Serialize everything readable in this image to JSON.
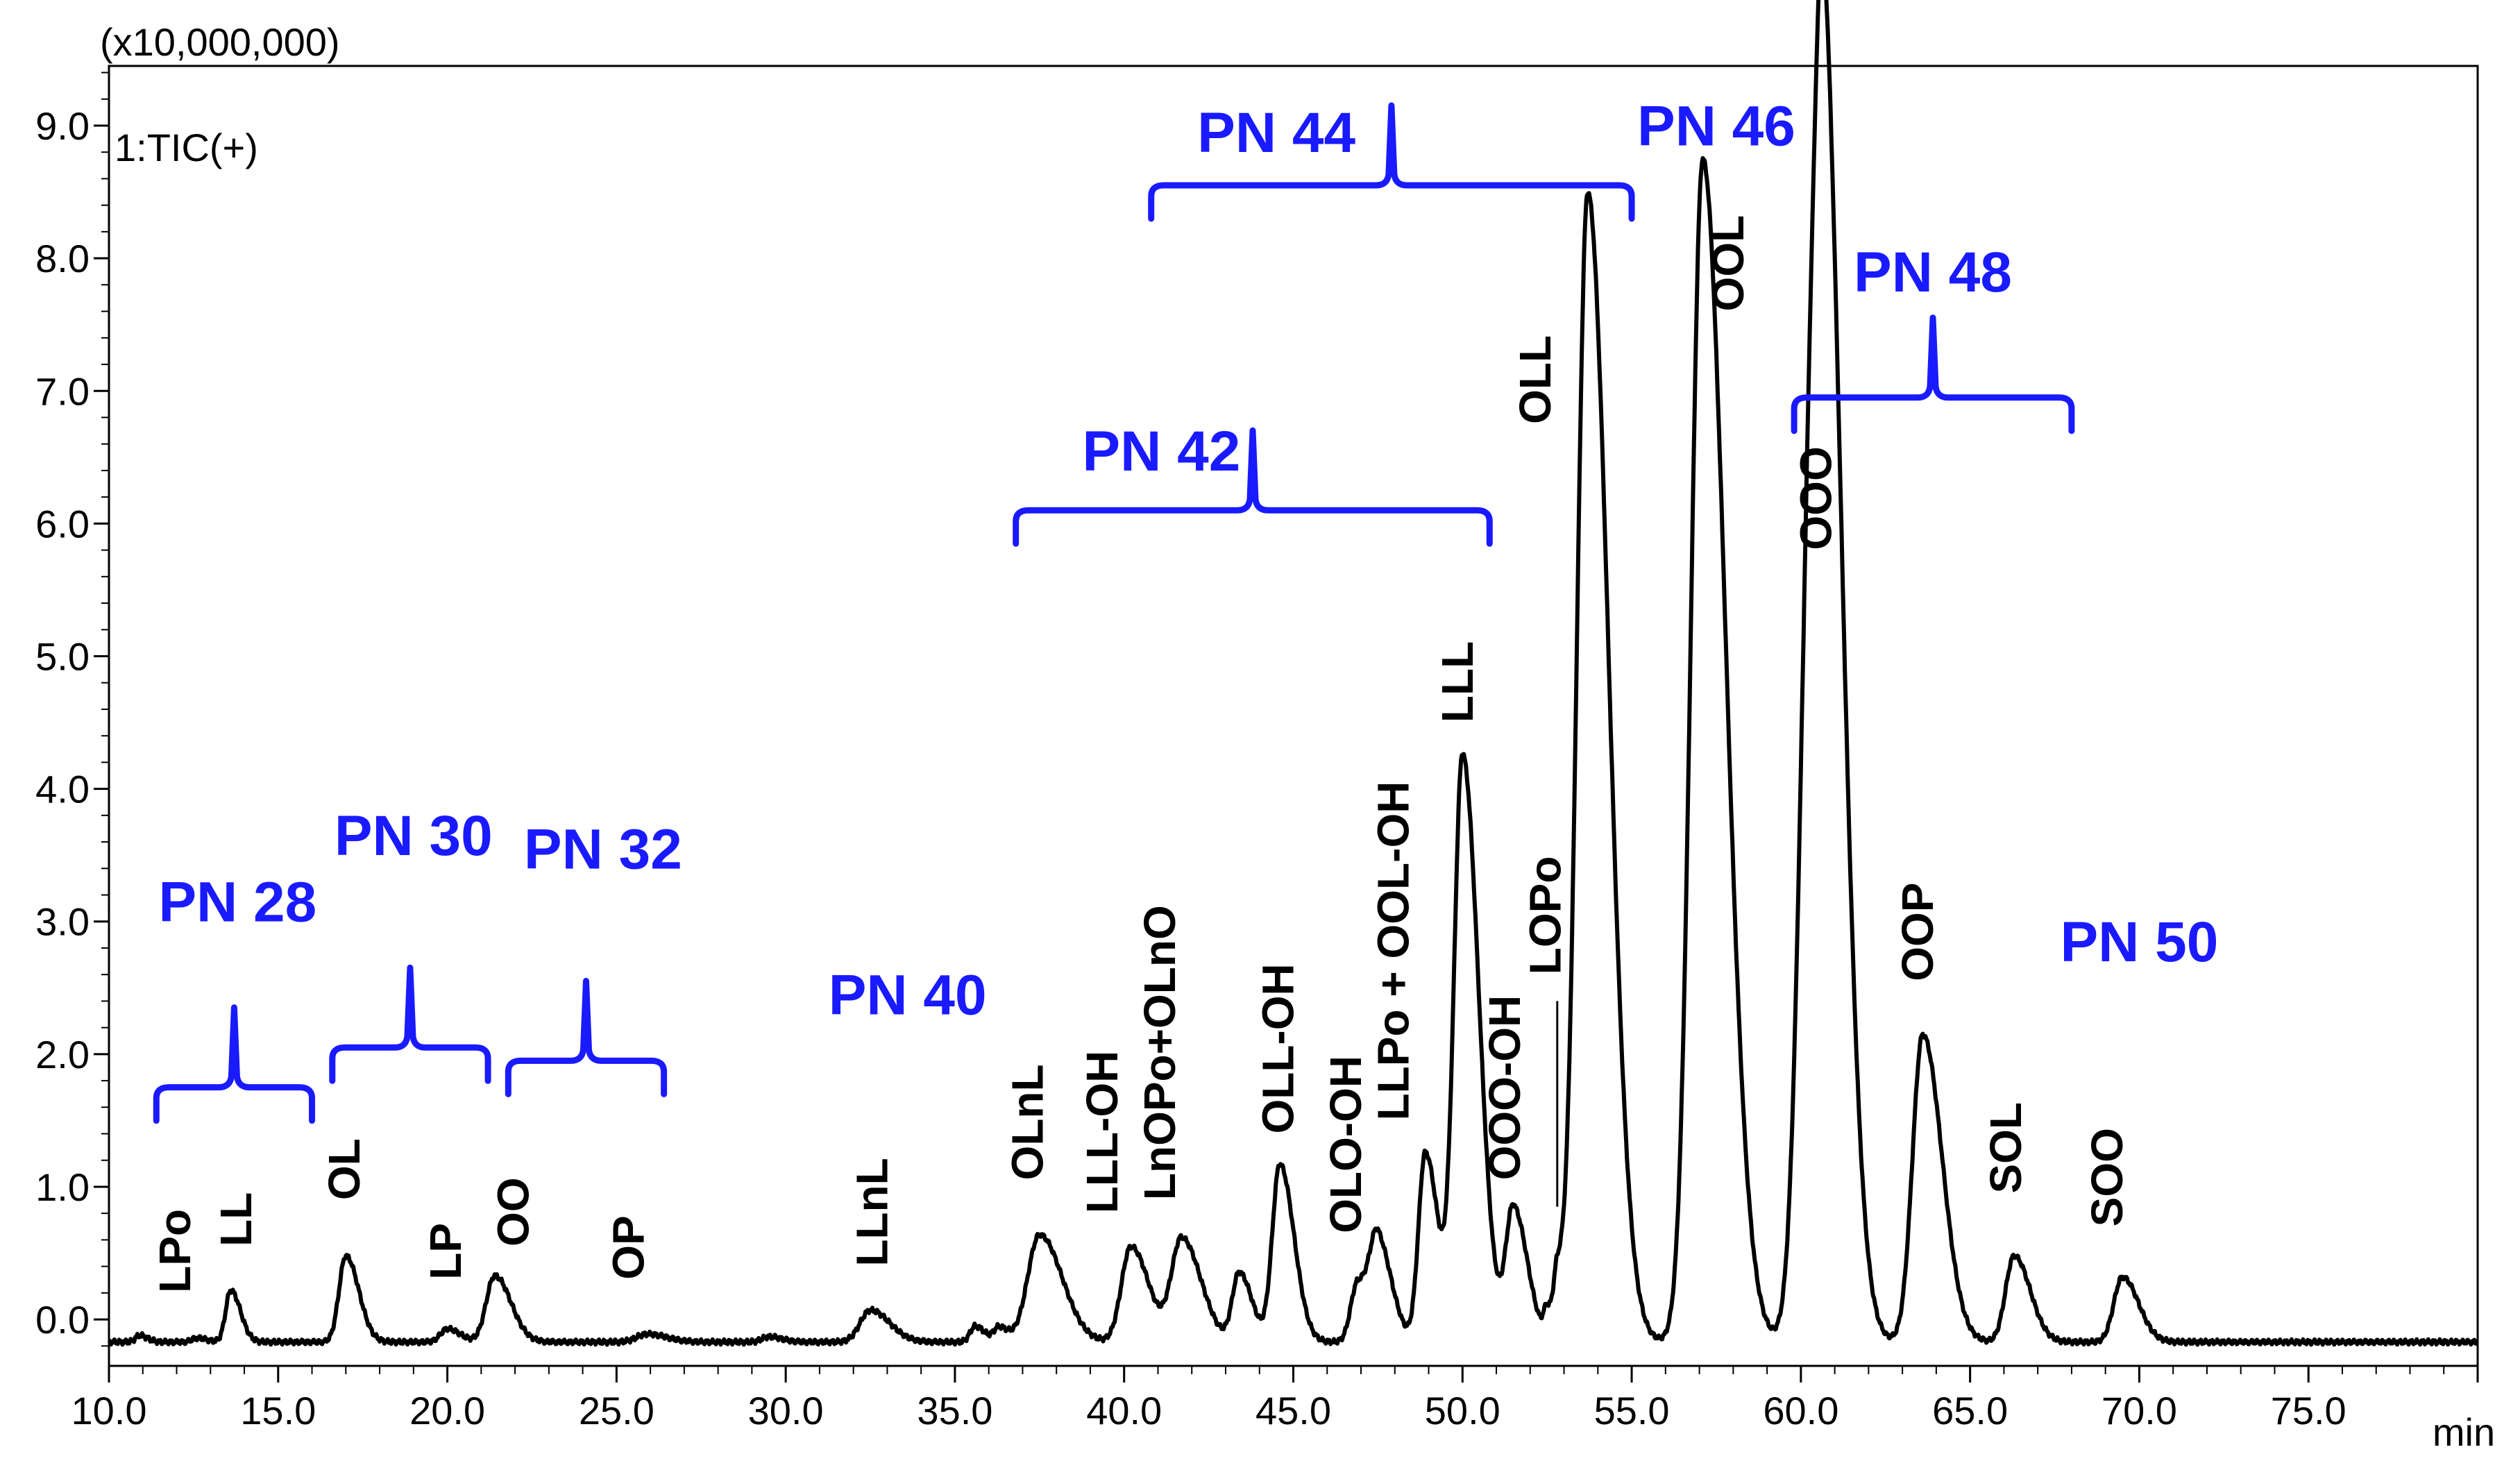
{
  "chart_data": {
    "type": "line",
    "title": "",
    "multiplier_label": "(x10,000,000)",
    "trace_label": "1:TIC(+)",
    "xlabel": "min",
    "ylabel": "",
    "xlim": [
      10.0,
      80.0
    ],
    "ylim": [
      -0.35,
      9.45
    ],
    "x_ticks": [
      10.0,
      15.0,
      20.0,
      25.0,
      30.0,
      35.0,
      40.0,
      45.0,
      50.0,
      55.0,
      60.0,
      65.0,
      70.0,
      75.0
    ],
    "x_tick_labels": [
      "10.0",
      "15.0",
      "20.0",
      "25.0",
      "30.0",
      "35.0",
      "40.0",
      "45.0",
      "50.0",
      "55.0",
      "60.0",
      "65.0",
      "70.0",
      "75.0"
    ],
    "y_ticks": [
      0,
      1,
      2,
      3,
      4,
      5,
      6,
      7,
      8,
      9
    ],
    "y_tick_labels": [
      "0.0",
      "1.0",
      "2.0",
      "3.0",
      "4.0",
      "5.0",
      "6.0",
      "7.0",
      "8.0",
      "9.0"
    ],
    "baseline": -0.17,
    "peaks": [
      {
        "rt": 10.9,
        "height": -0.12,
        "width": 0.12
      },
      {
        "rt": 12.6,
        "height": -0.14,
        "width": 0.15
      },
      {
        "rt": 13.6,
        "height": 0.22,
        "width": 0.15
      },
      {
        "rt": 17.0,
        "height": 0.48,
        "width": 0.2
      },
      {
        "rt": 20.0,
        "height": -0.07,
        "width": 0.2
      },
      {
        "rt": 21.4,
        "height": 0.33,
        "width": 0.25
      },
      {
        "rt": 25.9,
        "height": -0.11,
        "width": 0.3
      },
      {
        "rt": 29.5,
        "height": -0.13,
        "width": 0.2
      },
      {
        "rt": 32.5,
        "height": 0.07,
        "width": 0.3
      },
      {
        "rt": 35.6,
        "height": -0.05,
        "width": 0.15
      },
      {
        "rt": 36.3,
        "height": -0.06,
        "width": 0.15
      },
      {
        "rt": 37.5,
        "height": 0.64,
        "width": 0.35
      },
      {
        "rt": 40.2,
        "height": 0.55,
        "width": 0.28
      },
      {
        "rt": 41.7,
        "height": 0.61,
        "width": 0.3
      },
      {
        "rt": 43.4,
        "height": 0.35,
        "width": 0.2
      },
      {
        "rt": 44.6,
        "height": 1.17,
        "width": 0.22
      },
      {
        "rt": 46.9,
        "height": 0.28,
        "width": 0.2
      },
      {
        "rt": 47.5,
        "height": 0.55,
        "width": 0.22
      },
      {
        "rt": 48.9,
        "height": 1.26,
        "width": 0.2
      },
      {
        "rt": 50.0,
        "height": 4.25,
        "width": 0.25
      },
      {
        "rt": 51.5,
        "height": 0.84,
        "width": 0.22
      },
      {
        "rt": 52.5,
        "height": 0.05,
        "width": 0.1
      },
      {
        "rt": 52.8,
        "height": 0.25,
        "width": 0.1
      },
      {
        "rt": 53.7,
        "height": 8.5,
        "width": 0.32
      },
      {
        "rt": 57.1,
        "height": 8.75,
        "width": 0.35
      },
      {
        "rt": 60.3,
        "height": 5.55,
        "width": 0.35
      },
      {
        "rt": 60.7,
        "height": 5.45,
        "width": 0.3
      },
      {
        "rt": 63.6,
        "height": 2.15,
        "width": 0.3
      },
      {
        "rt": 66.3,
        "height": 0.48,
        "width": 0.25
      },
      {
        "rt": 69.5,
        "height": 0.32,
        "width": 0.25
      }
    ],
    "annotations": [
      {
        "text": "LPo",
        "rt": 12.4,
        "y": 0.2
      },
      {
        "text": "LL",
        "rt": 14.2,
        "y": 0.55
      },
      {
        "text": "OL",
        "rt": 17.4,
        "y": 0.9
      },
      {
        "text": "LP",
        "rt": 20.4,
        "y": 0.3
      },
      {
        "text": "OO",
        "rt": 22.4,
        "y": 0.55
      },
      {
        "text": "OP",
        "rt": 25.8,
        "y": 0.3
      },
      {
        "text": "LLnL",
        "rt": 33.0,
        "y": 0.4
      },
      {
        "text": "OLnL",
        "rt": 37.6,
        "y": 1.05
      },
      {
        "text": "LLL-OH",
        "rt": 39.8,
        "y": 0.8
      },
      {
        "text": "LnOPo+OLnO",
        "rt": 41.5,
        "y": 0.9
      },
      {
        "text": "OLL-OH",
        "rt": 45.0,
        "y": 1.4
      },
      {
        "text": "OLO-OH",
        "rt": 47.0,
        "y": 0.65
      },
      {
        "text": "LLPo + OOL-OH",
        "rt": 48.4,
        "y": 1.5
      },
      {
        "text": "LLL",
        "rt": 50.3,
        "y": 4.5
      },
      {
        "text": "OOO-OH",
        "rt": 51.7,
        "y": 1.05
      },
      {
        "text": "LOPo",
        "rt": 52.9,
        "y": 2.6
      },
      {
        "text": "OLL",
        "rt": 52.6,
        "y": 6.75
      },
      {
        "text": "OOL",
        "rt": 58.3,
        "y": 7.6
      },
      {
        "text": "OOO",
        "rt": 60.9,
        "y": 5.8
      },
      {
        "text": "OOP",
        "rt": 63.9,
        "y": 2.55
      },
      {
        "text": "SOL",
        "rt": 66.5,
        "y": 0.95
      },
      {
        "text": "SOO",
        "rt": 69.5,
        "y": 0.7
      }
    ],
    "pn_groups": [
      {
        "label": "PN 28",
        "range": [
          11.4,
          16.0
        ],
        "bracket_y": 1.75,
        "text_rt": 13.8,
        "text_y": 3.0
      },
      {
        "label": "PN 30",
        "range": [
          16.6,
          21.2
        ],
        "bracket_y": 2.05,
        "text_rt": 19.0,
        "text_y": 3.5
      },
      {
        "label": "PN 32",
        "range": [
          21.8,
          26.4
        ],
        "bracket_y": 1.95,
        "text_rt": 24.6,
        "text_y": 3.4
      },
      {
        "label": "PN 40",
        "range": null,
        "bracket_y": null,
        "text_rt": 33.6,
        "text_y": 2.3
      },
      {
        "label": "PN 42",
        "range": [
          36.8,
          50.8
        ],
        "bracket_y": 6.1,
        "text_rt": 41.1,
        "text_y": 6.4
      },
      {
        "label": "PN 44",
        "range": [
          40.8,
          55.0
        ],
        "bracket_y": 8.55,
        "text_rt": 44.5,
        "text_y": 8.8
      },
      {
        "label": "PN 46",
        "range": null,
        "bracket_y": null,
        "text_rt": 57.5,
        "text_y": 8.85
      },
      {
        "label": "PN 48",
        "range": [
          59.8,
          68.0
        ],
        "bracket_y": 6.95,
        "text_rt": 63.9,
        "text_y": 7.75
      },
      {
        "label": "PN 50",
        "range": null,
        "bracket_y": null,
        "text_rt": 70.0,
        "text_y": 2.7
      }
    ]
  }
}
